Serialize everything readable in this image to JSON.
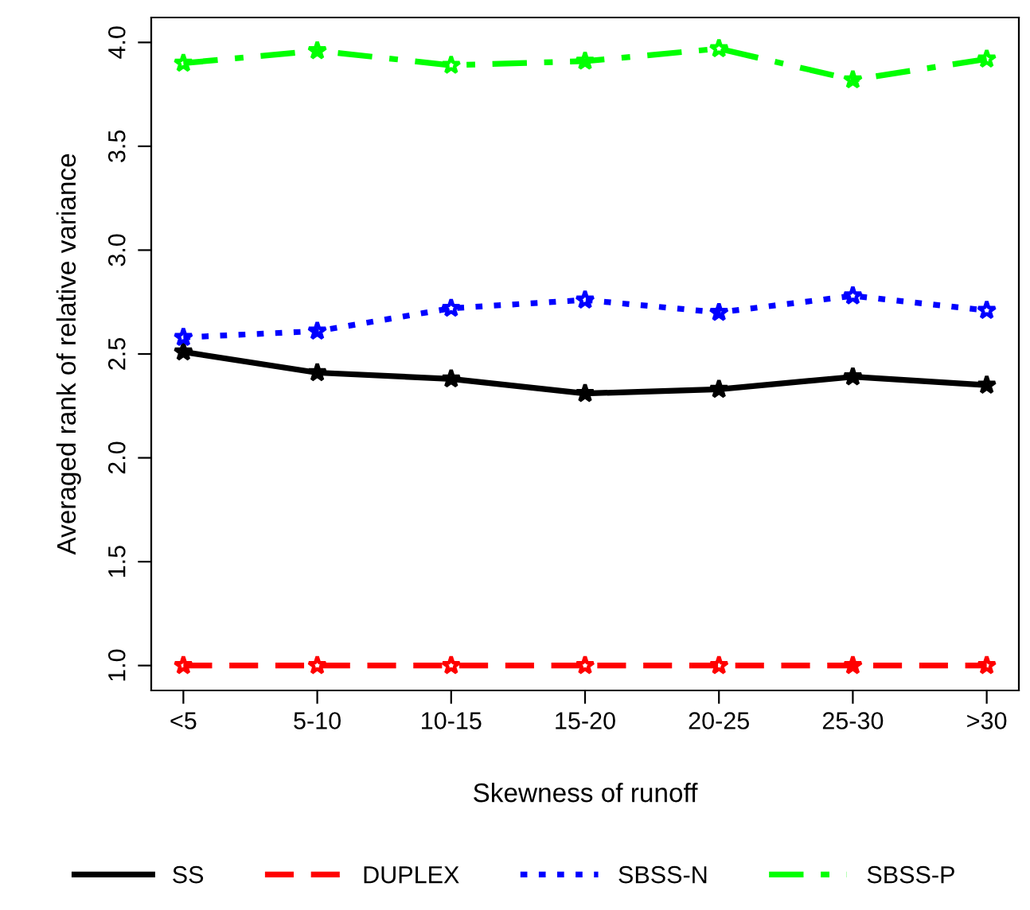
{
  "chart_data": {
    "type": "line",
    "xlabel": "Skewness of runoff",
    "ylabel": "Averaged rank of relative variance",
    "categories": [
      "<5",
      "5-10",
      "10-15",
      "15-20",
      "20-25",
      "25-30",
      ">30"
    ],
    "series": [
      {
        "name": "SS",
        "color": "#000000",
        "line_style": "solid",
        "values": [
          2.51,
          2.41,
          2.38,
          2.31,
          2.33,
          2.39,
          2.35
        ]
      },
      {
        "name": "DUPLEX",
        "color": "#ff0000",
        "line_style": "dashed",
        "values": [
          1.0,
          1.0,
          1.0,
          1.0,
          1.0,
          1.0,
          1.0
        ]
      },
      {
        "name": "SBSS-N",
        "color": "#0000ff",
        "line_style": "dotted",
        "values": [
          2.58,
          2.61,
          2.72,
          2.76,
          2.7,
          2.78,
          2.71
        ]
      },
      {
        "name": "SBSS-P",
        "color": "#00ff00",
        "line_style": "dashdot",
        "values": [
          3.9,
          3.96,
          3.89,
          3.91,
          3.97,
          3.82,
          3.92
        ]
      }
    ],
    "ylim": [
      0.88,
      4.12
    ],
    "yticks": [
      {
        "value": 1.0,
        "label": "1.0"
      },
      {
        "value": 1.5,
        "label": "1.5"
      },
      {
        "value": 2.0,
        "label": "2.0"
      },
      {
        "value": 2.5,
        "label": "2.5"
      },
      {
        "value": 3.0,
        "label": "3.0"
      },
      {
        "value": 3.5,
        "label": "3.5"
      },
      {
        "value": 4.0,
        "label": "4.0"
      }
    ],
    "marker": "star",
    "grid": false,
    "legend": "bottom"
  }
}
